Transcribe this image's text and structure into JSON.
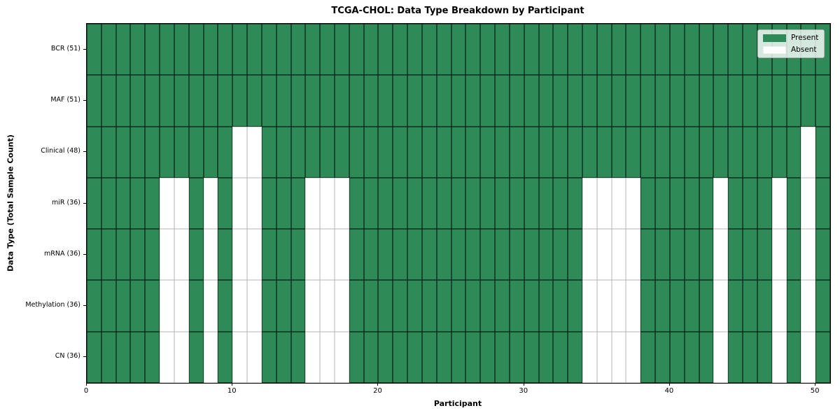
{
  "chart_data": {
    "type": "heatmap",
    "title": "TCGA-CHOL: Data Type Breakdown by Participant",
    "xlabel": "Participant",
    "ylabel": "Data Type (Total Sample Count)",
    "n_participants": 51,
    "participant_range": [
      0,
      50
    ],
    "x_ticks": [
      0,
      10,
      20,
      30,
      40,
      50
    ],
    "grid": true,
    "legend_position": "upper right",
    "cell_states": {
      "present": 1,
      "absent": 0
    },
    "rows": [
      {
        "name": "BCR",
        "label": "BCR (51)",
        "total": 51,
        "absent": []
      },
      {
        "name": "MAF",
        "label": "MAF (51)",
        "total": 51,
        "absent": []
      },
      {
        "name": "Clinical",
        "label": "Clinical (48)",
        "total": 48,
        "absent": [
          10,
          11,
          49
        ]
      },
      {
        "name": "miR",
        "label": "miR (36)",
        "total": 36,
        "absent": [
          5,
          6,
          8,
          10,
          11,
          15,
          16,
          17,
          34,
          35,
          36,
          37,
          43,
          47,
          49
        ]
      },
      {
        "name": "mRNA",
        "label": "mRNA (36)",
        "total": 36,
        "absent": [
          5,
          6,
          8,
          10,
          11,
          15,
          16,
          17,
          34,
          35,
          36,
          37,
          43,
          47,
          49
        ]
      },
      {
        "name": "Methylation",
        "label": "Methylation (36)",
        "total": 36,
        "absent": [
          5,
          6,
          8,
          10,
          11,
          15,
          16,
          17,
          34,
          35,
          36,
          37,
          43,
          47,
          49
        ]
      },
      {
        "name": "CN",
        "label": "CN (36)",
        "total": 36,
        "absent": [
          5,
          6,
          8,
          10,
          11,
          15,
          16,
          17,
          34,
          35,
          36,
          37,
          43,
          47,
          49
        ]
      }
    ],
    "legend": [
      {
        "label": "Present",
        "color": "#2e8b57"
      },
      {
        "label": "Absent",
        "color": "#ffffff"
      }
    ],
    "colors": {
      "present": "#2e8b57",
      "absent": "#ffffff",
      "grid": "#b4b4b4",
      "cell_edge": "#1a1a1a",
      "spine": "#000000"
    }
  }
}
